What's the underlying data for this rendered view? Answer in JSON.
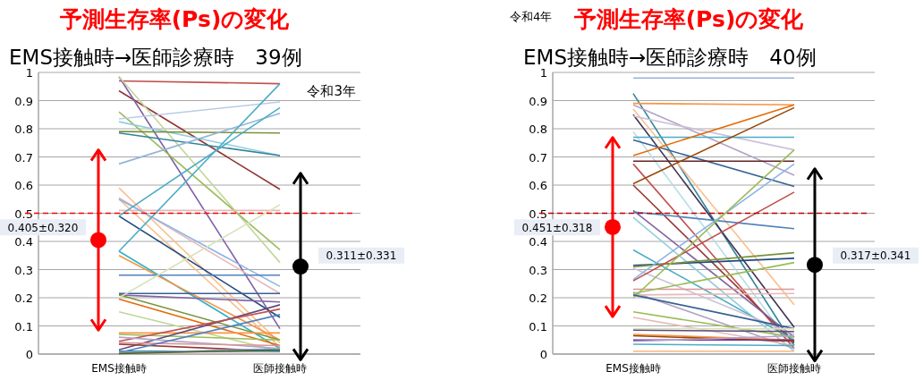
{
  "chart_data": [
    {
      "type": "line",
      "title": "予測生存率(Ps)の変化",
      "subtitle": "EMS接触時→医師診療時　39例",
      "annotations": [
        "令和3年"
      ],
      "categories": [
        "EMS接触時",
        "医師接触時"
      ],
      "ylim": [
        0,
        1
      ],
      "yticks": [
        0,
        0.1,
        0.2,
        0.3,
        0.4,
        0.5,
        0.6,
        0.7,
        0.8,
        0.9,
        1
      ],
      "grid": "y",
      "ref_lines": [
        {
          "axis": "y",
          "value": 0.5,
          "color": "#ff0000",
          "line_style": "dashed"
        }
      ],
      "series": [
        {
          "color": "#c0504d",
          "values": [
            0.97,
            0.96
          ]
        },
        {
          "color": "#943634",
          "values": [
            0.935,
            0.585
          ]
        },
        {
          "color": "#7f5fa9",
          "values": [
            0.985,
            0.09
          ]
        },
        {
          "color": "#c3d69b",
          "values": [
            0.985,
            0.325
          ]
        },
        {
          "color": "#9bbb59",
          "values": [
            0.86,
            0.37
          ]
        },
        {
          "color": "#b9cde5",
          "values": [
            0.835,
            0.895
          ]
        },
        {
          "color": "#93cddd",
          "values": [
            0.825,
            0.705
          ]
        },
        {
          "color": "#77933c",
          "values": [
            0.79,
            0.785
          ]
        },
        {
          "color": "#31859c",
          "values": [
            0.785,
            0.705
          ]
        },
        {
          "color": "#95b3d7",
          "values": [
            0.675,
            0.855
          ]
        },
        {
          "color": "#fac090",
          "values": [
            0.59,
            0.04
          ]
        },
        {
          "color": "#e6b9b8",
          "values": [
            0.555,
            0.215
          ]
        },
        {
          "color": "#fabf8f",
          "values": [
            0.55,
            0.025
          ]
        },
        {
          "color": "#e6b9b8",
          "values": [
            0.51,
            0.51
          ]
        },
        {
          "color": "#1f497d",
          "values": [
            0.49,
            0.13
          ]
        },
        {
          "color": "#8eb4e3",
          "values": [
            0.55,
            0.24
          ]
        },
        {
          "color": "#4bacc6",
          "values": [
            0.365,
            0.96
          ]
        },
        {
          "color": "#31b0c8",
          "values": [
            0.365,
            0.02
          ]
        },
        {
          "color": "#f79646",
          "values": [
            0.35,
            0.05
          ]
        },
        {
          "color": "#4f81bd",
          "values": [
            0.28,
            0.28
          ]
        },
        {
          "color": "#376092",
          "values": [
            0.215,
            0.215
          ]
        },
        {
          "color": "#8064a2",
          "values": [
            0.21,
            0.185
          ]
        },
        {
          "color": "#77933c",
          "values": [
            0.21,
            0.05
          ]
        },
        {
          "color": "#d7e4bd",
          "values": [
            0.2,
            0.53
          ]
        },
        {
          "color": "#e46c0a",
          "values": [
            0.195,
            0.03
          ]
        },
        {
          "color": "#c3d69b",
          "values": [
            0.15,
            0.01
          ]
        },
        {
          "color": "#f79646",
          "values": [
            0.075,
            0.075
          ]
        },
        {
          "color": "#9bbb59",
          "values": [
            0.07,
            0.05
          ]
        },
        {
          "color": "#604a7b",
          "values": [
            0.015,
            0.175
          ]
        },
        {
          "color": "#c0504d",
          "values": [
            0.045,
            0.16
          ]
        },
        {
          "color": "#b3a2c7",
          "values": [
            0.06,
            0.02
          ]
        },
        {
          "color": "#d99694",
          "values": [
            0.04,
            0.03
          ]
        },
        {
          "color": "#953735",
          "values": [
            0.035,
            0.01
          ]
        },
        {
          "color": "#4bacc6",
          "values": [
            0.49,
            0.875
          ]
        },
        {
          "color": "#31859c",
          "values": [
            0.01,
            0.01
          ]
        },
        {
          "color": "#4f81bd",
          "values": [
            0.005,
            0.14
          ]
        },
        {
          "color": "#f2dcdb",
          "values": [
            0.005,
            0.005
          ]
        },
        {
          "color": "#8db3e2",
          "values": [
            0.003,
            0.02
          ]
        },
        {
          "color": "#4f6228",
          "values": [
            0.002,
            0.015
          ]
        },
        {
          "type": "scatter",
          "x": [
            "EMS接触時"
          ],
          "values": [
            0.405
          ],
          "errors": [
            0.32
          ],
          "value_labels": [
            "0.405±0.320"
          ],
          "color": "#ff0000"
        },
        {
          "type": "scatter",
          "x": [
            "医師接触時"
          ],
          "values": [
            0.311
          ],
          "errors": [
            0.331
          ],
          "value_labels": [
            "0.311±0.331"
          ],
          "color": "#000000"
        }
      ]
    },
    {
      "type": "line",
      "title": "予測生存率(Ps)の変化",
      "subtitle": "EMS接触時→医師診療時　40例",
      "annotations": [
        "令和4年"
      ],
      "categories": [
        "EMS接触時",
        "医師接触時"
      ],
      "ylim": [
        0,
        1
      ],
      "yticks": [
        0,
        0.1,
        0.2,
        0.3,
        0.4,
        0.5,
        0.6,
        0.7,
        0.8,
        0.9,
        1
      ],
      "grid": "y",
      "ref_lines": [
        {
          "axis": "y",
          "value": 0.5,
          "color": "#c00000",
          "line_style": "dashed"
        }
      ],
      "series": [
        {
          "color": "#95b3d7",
          "values": [
            0.98,
            0.98
          ]
        },
        {
          "color": "#31859c",
          "values": [
            0.925,
            0.03
          ]
        },
        {
          "color": "#f79646",
          "values": [
            0.89,
            0.885
          ]
        },
        {
          "color": "#b3a2c7",
          "values": [
            0.885,
            0.635
          ]
        },
        {
          "color": "#fac090",
          "values": [
            0.87,
            0.175
          ]
        },
        {
          "color": "#403152",
          "values": [
            0.85,
            0.095
          ]
        },
        {
          "color": "#ccc1da",
          "values": [
            0.845,
            0.725
          ]
        },
        {
          "color": "#b7dee8",
          "values": [
            0.79,
            0.02
          ]
        },
        {
          "color": "#4bacc6",
          "values": [
            0.77,
            0.77
          ]
        },
        {
          "color": "#376092",
          "values": [
            0.76,
            0.595
          ]
        },
        {
          "color": "#e46c0a",
          "values": [
            0.705,
            0.885
          ]
        },
        {
          "color": "#632523",
          "values": [
            0.685,
            0.685
          ]
        },
        {
          "color": "#c0504d",
          "values": [
            0.675,
            0.02
          ]
        },
        {
          "color": "#984807",
          "values": [
            0.605,
            0.875
          ]
        },
        {
          "color": "#953735",
          "values": [
            0.6,
            0.04
          ]
        },
        {
          "color": "#8064a2",
          "values": [
            0.51,
            0.06
          ]
        },
        {
          "color": "#4f81bd",
          "values": [
            0.505,
            0.445
          ]
        },
        {
          "color": "#93cddd",
          "values": [
            0.485,
            0.01
          ]
        },
        {
          "color": "#4bacc6",
          "values": [
            0.37,
            0.05
          ]
        },
        {
          "color": "#1f497d",
          "values": [
            0.315,
            0.34
          ]
        },
        {
          "color": "#77933c",
          "values": [
            0.31,
            0.36
          ]
        },
        {
          "color": "#ccc1da",
          "values": [
            0.305,
            0.07
          ]
        },
        {
          "color": "#8eb4e3",
          "values": [
            0.265,
            0.675
          ]
        },
        {
          "color": "#c0504d",
          "values": [
            0.26,
            0.575
          ]
        },
        {
          "color": "#d99694",
          "values": [
            0.23,
            0.23
          ]
        },
        {
          "color": "#b3a2c7",
          "values": [
            0.22,
            0.02
          ]
        },
        {
          "color": "#9bbb59",
          "values": [
            0.215,
            0.325
          ]
        },
        {
          "color": "#e6b9b8",
          "values": [
            0.21,
            0.215
          ]
        },
        {
          "color": "#9bbb59",
          "values": [
            0.2,
            0.725
          ]
        },
        {
          "color": "#376092",
          "values": [
            0.21,
            0.09
          ]
        },
        {
          "color": "#9bbb59",
          "values": [
            0.15,
            0.06
          ]
        },
        {
          "color": "#e6b9b8",
          "values": [
            0.13,
            0.03
          ]
        },
        {
          "color": "#d7e4bd",
          "values": [
            0.09,
            0.09
          ]
        },
        {
          "color": "#604a7b",
          "values": [
            0.085,
            0.08
          ]
        },
        {
          "color": "#f79646",
          "values": [
            0.07,
            0.05
          ]
        },
        {
          "color": "#984807",
          "values": [
            0.065,
            0.045
          ]
        },
        {
          "color": "#7030a0",
          "values": [
            0.05,
            0.05
          ]
        },
        {
          "color": "#b3a2c7",
          "values": [
            0.045,
            0.065
          ]
        },
        {
          "color": "#4bacc6",
          "values": [
            0.035,
            0.03
          ]
        },
        {
          "color": "#fac090",
          "values": [
            0.01,
            0.01
          ]
        },
        {
          "type": "scatter",
          "x": [
            "EMS接触時"
          ],
          "values": [
            0.451
          ],
          "errors": [
            0.318
          ],
          "value_labels": [
            "0.451±0.318"
          ],
          "color": "#ff0000"
        },
        {
          "type": "scatter",
          "x": [
            "医師接触時"
          ],
          "values": [
            0.317
          ],
          "errors": [
            0.341
          ],
          "value_labels": [
            "0.317±0.341"
          ],
          "color": "#000000"
        }
      ]
    }
  ]
}
